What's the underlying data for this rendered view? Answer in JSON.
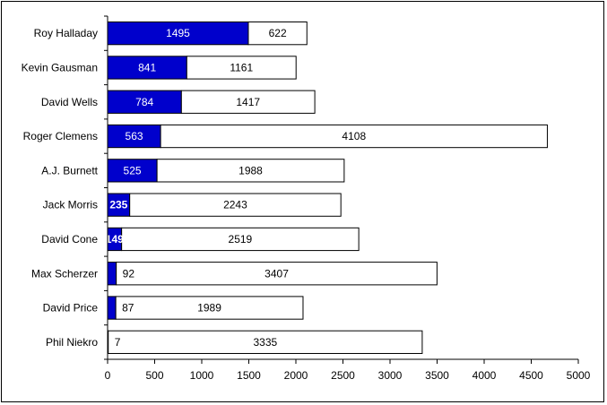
{
  "chart_data": {
    "type": "bar",
    "orientation": "horizontal",
    "stacked": true,
    "categories": [
      "Roy Halladay",
      "Kevin Gausman",
      "David Wells",
      "Roger Clemens",
      "A.J. Burnett",
      "Jack Morris",
      "David Cone",
      "Max Scherzer",
      "David Price",
      "Phil Niekro"
    ],
    "series": [
      {
        "values": [
          1495,
          841,
          784,
          563,
          525,
          235,
          149,
          92,
          87,
          7
        ],
        "color": "#0000CC"
      },
      {
        "values": [
          622,
          1161,
          1417,
          4108,
          1988,
          2243,
          2519,
          3407,
          1989,
          3335
        ],
        "color": "#FFFFFF"
      }
    ],
    "xlim": [
      0,
      5000
    ],
    "xticks": [
      0,
      500,
      1000,
      1500,
      2000,
      2500,
      3000,
      3500,
      4000,
      4500,
      5000
    ],
    "grid": false,
    "legend": "none",
    "title": "",
    "xlabel": "",
    "ylabel": ""
  }
}
